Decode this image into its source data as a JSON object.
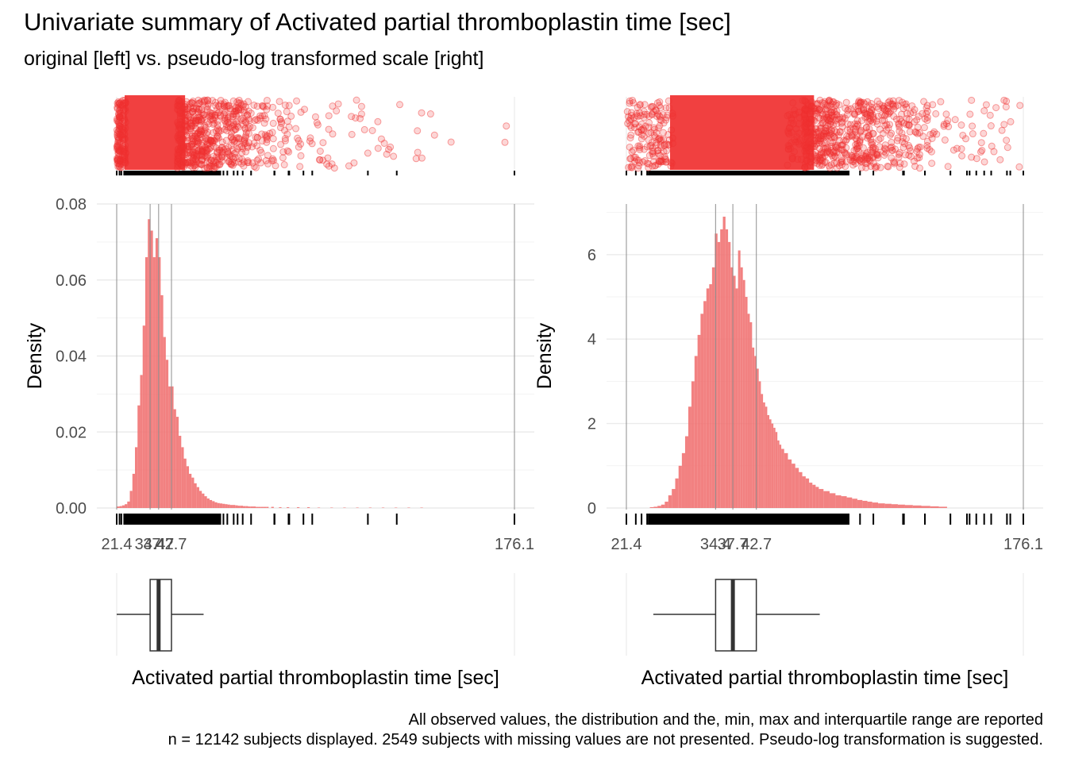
{
  "title": "Univariate summary of Activated partial thromboplastin time [sec]",
  "subtitle": "original [left] vs. pseudo-log transformed scale [right]",
  "caption": {
    "line1": "All observed values, the distribution and the, min, max and interquartile range are reported",
    "line2": "n = 12142 subjects displayed. 2549 subjects with missing values are not presented. Pseudo-log transformation is suggested."
  },
  "colors": {
    "fill": "#f07070",
    "points": "#f03030",
    "ref_lines": "#9a9a9a",
    "grid": "#ebebeb"
  },
  "chart_data": [
    {
      "type": "histogram",
      "panel": "original [left]",
      "xlabel": "Activated partial thromboplastin time [sec]",
      "ylabel": "Density",
      "xlim": [
        21.4,
        176.1
      ],
      "ylim": [
        0,
        0.08
      ],
      "yticks": [
        0.0,
        0.02,
        0.04,
        0.06,
        0.08
      ],
      "ytick_labels": [
        "0.00",
        "0.02",
        "0.04",
        "0.06",
        "0.08"
      ],
      "xticks": [
        {
          "value": 21.4,
          "label": "21.4"
        },
        {
          "value": 34.4,
          "label": "34.4"
        },
        {
          "value": 37.7,
          "label": "37.7"
        },
        {
          "value": 42.7,
          "label": "42.7"
        },
        {
          "value": 176.1,
          "label": "176.1"
        }
      ],
      "reference_lines": [
        21.4,
        34.4,
        37.7,
        42.7,
        176.1
      ],
      "boxplot": {
        "whisker_low": 21.4,
        "q1": 34.4,
        "median": 37.7,
        "q3": 42.7,
        "whisker_high": 55.2
      },
      "bins": {
        "centers": [
          21.0,
          22.0,
          23.0,
          24.0,
          25.0,
          26.0,
          27.0,
          28.0,
          29.0,
          30.0,
          31.0,
          32.0,
          33.0,
          34.0,
          35.0,
          36.0,
          37.0,
          38.0,
          39.0,
          40.0,
          41.0,
          42.0,
          43.0,
          44.0,
          45.0,
          46.0,
          47.0,
          48.0,
          49.0,
          50.0,
          51.0,
          52.0,
          53.0,
          54.0,
          55.0,
          56.0,
          57.0,
          58.0,
          59.0,
          60.0,
          61.0,
          62.0,
          63.0,
          64.0,
          65.0,
          66.0,
          67.0,
          68.0,
          69.0,
          70.0,
          71.0,
          72.0,
          73.0,
          74.0,
          75.0,
          76.0,
          77.0,
          78.0,
          79.0,
          80.0,
          82.0,
          85.0,
          88.0,
          92.0,
          96.0,
          100.0,
          105.0,
          110.0,
          115.0,
          120.0,
          125.0,
          130.0,
          135.0,
          140.0
        ],
        "density": [
          0.0003,
          0.0004,
          0.0005,
          0.0007,
          0.001,
          0.0017,
          0.0045,
          0.009,
          0.016,
          0.027,
          0.035,
          0.048,
          0.066,
          0.076,
          0.073,
          0.066,
          0.071,
          0.066,
          0.056,
          0.045,
          0.039,
          0.032,
          0.032,
          0.026,
          0.024,
          0.019,
          0.016,
          0.013,
          0.011,
          0.009,
          0.008,
          0.0065,
          0.0055,
          0.0045,
          0.0038,
          0.0031,
          0.0025,
          0.0021,
          0.0018,
          0.0015,
          0.0013,
          0.0012,
          0.0011,
          0.001,
          0.0009,
          0.0008,
          0.0008,
          0.0007,
          0.0006,
          0.0006,
          0.0005,
          0.0005,
          0.0004,
          0.0004,
          0.0004,
          0.0003,
          0.0003,
          0.0003,
          0.0003,
          0.0003,
          0.0003,
          0.0002,
          0.0002,
          0.0002,
          0.0002,
          0.0001,
          0.0001,
          0.0001,
          0.0001,
          0.0001,
          0.0001,
          0.0001,
          0.0001,
          0.0001
        ]
      }
    },
    {
      "type": "histogram",
      "panel": "pseudo-log transformed scale [right]",
      "xlabel": "Activated partial thromboplastin time [sec]",
      "ylabel": "Density",
      "xscale": "pseudo-log",
      "xlim": [
        21.4,
        176.1
      ],
      "ylim": [
        0,
        7.2
      ],
      "yticks": [
        0,
        2,
        4,
        6
      ],
      "ytick_labels": [
        "0",
        "2",
        "4",
        "6"
      ],
      "xticks": [
        {
          "value": 21.4,
          "label": "21.4"
        },
        {
          "value": 34.4,
          "label": "34.4"
        },
        {
          "value": 37.7,
          "label": "37.7"
        },
        {
          "value": 42.7,
          "label": "42.7"
        },
        {
          "value": 176.1,
          "label": "176.1"
        }
      ],
      "reference_lines": [
        21.4,
        34.4,
        37.7,
        42.7,
        176.1
      ],
      "boxplot": {
        "whisker_low": 24.7,
        "q1": 34.4,
        "median": 37.7,
        "q3": 42.7,
        "whisker_high": 59.8
      },
      "bins": {
        "centers": [
          24.5,
          25.0,
          25.5,
          26.0,
          26.5,
          27.0,
          27.5,
          28.0,
          28.5,
          29.0,
          29.5,
          30.0,
          30.5,
          31.0,
          31.5,
          32.0,
          32.5,
          33.0,
          33.5,
          34.0,
          34.5,
          35.0,
          35.5,
          36.0,
          36.5,
          37.0,
          37.5,
          38.0,
          38.5,
          39.0,
          39.5,
          40.0,
          40.5,
          41.0,
          41.5,
          42.0,
          42.5,
          43.0,
          43.5,
          44.0,
          44.5,
          45.0,
          45.5,
          46.0,
          46.5,
          47.0,
          47.5,
          48.0,
          48.5,
          49.0,
          50.0,
          51.0,
          52.0,
          53.0,
          54.0,
          55.0,
          56.0,
          57.0,
          58.0,
          59.0,
          60.0,
          62.0,
          64.0,
          66.0,
          68.0,
          70.0,
          72.0,
          74.0,
          76.0,
          78.0,
          80.0,
          83.0,
          86.0,
          89.0,
          92.0,
          96.0,
          100.0,
          105.0,
          110.0,
          115.0
        ],
        "density": [
          0.02,
          0.03,
          0.05,
          0.08,
          0.15,
          0.3,
          0.45,
          0.7,
          1.0,
          1.3,
          1.7,
          2.4,
          3.0,
          3.6,
          4.1,
          4.6,
          4.9,
          5.2,
          5.3,
          5.7,
          6.5,
          6.3,
          6.6,
          6.9,
          6.6,
          6.3,
          5.7,
          5.5,
          5.2,
          6.1,
          5.7,
          5.4,
          5.0,
          4.6,
          4.4,
          3.8,
          3.6,
          3.3,
          3.0,
          2.7,
          2.5,
          2.4,
          2.2,
          2.1,
          2.0,
          1.9,
          1.8,
          1.6,
          1.5,
          1.4,
          1.3,
          1.15,
          1.05,
          0.95,
          0.85,
          0.75,
          0.7,
          0.6,
          0.55,
          0.5,
          0.45,
          0.4,
          0.35,
          0.3,
          0.28,
          0.25,
          0.22,
          0.19,
          0.17,
          0.15,
          0.13,
          0.11,
          0.1,
          0.09,
          0.08,
          0.07,
          0.06,
          0.05,
          0.04,
          0.03
        ]
      }
    }
  ]
}
